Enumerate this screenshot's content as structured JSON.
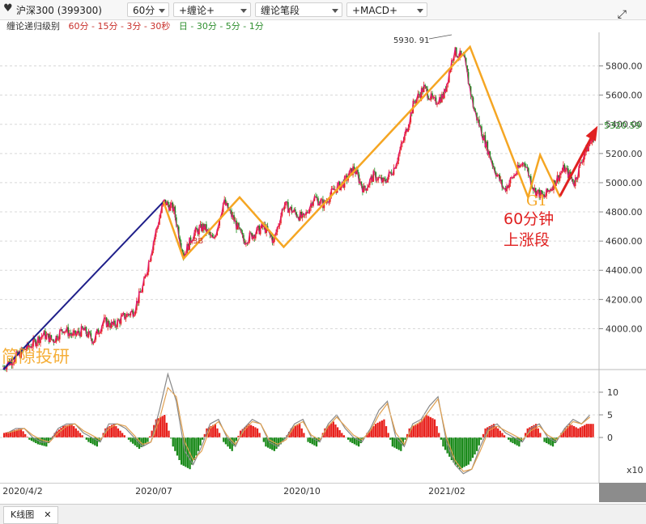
{
  "toolbar": {
    "heart_icon": "heart-icon",
    "symbol": "沪深300 (399300)",
    "period": "60分",
    "btn1": "+缠论+",
    "btn2": "缠论笔段",
    "btn3": "+MACD+",
    "expand_icon": "expand-icon"
  },
  "legend": {
    "label": "缠论递归级别",
    "red_part": "60分 - 15分 - 3分 - 30秒",
    "green_part": "日 - 30分 - 5分 - 1分"
  },
  "annotations": {
    "peak_label": "5930. 91",
    "last_price": "5320.59",
    "b3_label": "3B",
    "g1_label": "G1",
    "up_text_1": "60分钟",
    "up_text_2": "上涨段",
    "watermark": "简隙投研"
  },
  "colors": {
    "bull": "#e8211c",
    "bear": "#1a8a1a",
    "line_k": "#e0197d",
    "segment": "#f5a623",
    "trend": "#1f1f8a",
    "arrow": "#e02020",
    "dif": "#888888",
    "dea": "#e0a050"
  },
  "chart_data": {
    "type": "line",
    "price_axis": {
      "ticks": [
        4000,
        4200,
        4400,
        4600,
        4800,
        5000,
        5200,
        5400,
        5600,
        5800
      ],
      "range": [
        3720,
        6030
      ]
    },
    "macd_axis": {
      "ticks": [
        10,
        5,
        0
      ],
      "range": [
        -10,
        15
      ],
      "unit_label": "x10"
    },
    "x_labels": [
      "2020/4/2",
      "2020/07",
      "2020/10",
      "2021/02"
    ],
    "price_series": {
      "name": "",
      "x": [
        0,
        5,
        10,
        15,
        20,
        25,
        30,
        35,
        40,
        45,
        50,
        55,
        60,
        65,
        70,
        75,
        80,
        85,
        90,
        95,
        100,
        105,
        110,
        115,
        120,
        125,
        130,
        135,
        140,
        145,
        150,
        155,
        160,
        165,
        170,
        175,
        180,
        185,
        190,
        195,
        200,
        205,
        210,
        215,
        220,
        225,
        230,
        235,
        240,
        245,
        250,
        255,
        260,
        265,
        270,
        275,
        280,
        285,
        290,
        295
      ],
      "y": [
        3740,
        3790,
        3850,
        3900,
        3960,
        3920,
        4000,
        3950,
        3990,
        3920,
        4050,
        4020,
        4080,
        4120,
        4300,
        4600,
        4870,
        4820,
        4500,
        4650,
        4700,
        4600,
        4870,
        4750,
        4600,
        4650,
        4700,
        4600,
        4850,
        4800,
        4750,
        4900,
        4850,
        4950,
        5000,
        5100,
        4950,
        5050,
        5000,
        5100,
        5300,
        5550,
        5650,
        5550,
        5600,
        5900,
        5850,
        5500,
        5300,
        5100,
        4950,
        5050,
        5150,
        4950,
        4900,
        5000,
        5100,
        5000,
        5200,
        5320
      ]
    },
    "segments": {
      "name": "",
      "points": [
        {
          "x": 80,
          "y": 4870
        },
        {
          "x": 90,
          "y": 4480
        },
        {
          "x": 118,
          "y": 4900
        },
        {
          "x": 140,
          "y": 4560
        },
        {
          "x": 233,
          "y": 5930.91
        },
        {
          "x": 262,
          "y": 4900
        },
        {
          "x": 268,
          "y": 5190
        },
        {
          "x": 278,
          "y": 4900
        }
      ]
    },
    "trend_line": {
      "from": {
        "x": 0,
        "y": 3720
      },
      "to": {
        "x": 80,
        "y": 4870
      }
    },
    "arrow": {
      "from": {
        "x": 278,
        "y": 4910
      },
      "to": {
        "x": 300,
        "y": 5370
      }
    },
    "macd_hist": [
      1,
      1.5,
      2,
      -0.5,
      -1.5,
      -2,
      1,
      2.5,
      3,
      1,
      -1,
      -2,
      2,
      3,
      1,
      -1,
      -2.5,
      -1,
      4,
      5,
      -2,
      -6,
      -7,
      -3,
      2,
      3,
      -1,
      -3,
      1.5,
      3,
      2,
      -2,
      -3,
      -1,
      2,
      3,
      -1,
      -2,
      2,
      3.5,
      1,
      -1,
      -2,
      1,
      3,
      4,
      -2,
      -3,
      2,
      3,
      5,
      4,
      -2,
      -5,
      -7,
      -6,
      -3,
      2,
      3,
      1,
      -1,
      -2,
      2,
      3,
      -1,
      -2,
      1,
      3,
      2,
      3
    ],
    "macd_dif": [
      1,
      2,
      2,
      0,
      -1,
      -1,
      2,
      3,
      3,
      1,
      0,
      -1,
      3,
      3,
      2,
      0,
      -2,
      -1,
      6,
      14,
      8,
      -3,
      -6,
      -2,
      3,
      4,
      0,
      -2,
      2,
      4,
      3,
      -1,
      -2,
      0,
      3,
      4,
      0,
      -1,
      3,
      5,
      2,
      0,
      -1,
      2,
      6,
      8,
      0,
      -2,
      3,
      4,
      7,
      9,
      -1,
      -6,
      -8,
      -7,
      -2,
      2,
      3,
      1,
      0,
      -1,
      2,
      3,
      0,
      -1,
      2,
      4,
      3,
      5
    ],
    "macd_dea": [
      1,
      1.5,
      2,
      0.5,
      -0.5,
      -1,
      1,
      2.5,
      3,
      1.5,
      0.5,
      -0.5,
      2,
      3,
      2.5,
      0.5,
      -1.5,
      -1,
      4,
      11,
      9,
      -1,
      -5,
      -3,
      2,
      3.5,
      0.5,
      -1.5,
      1.5,
      3.5,
      3,
      -0.5,
      -1.5,
      -0.5,
      2.5,
      3.5,
      0.5,
      -0.5,
      2.5,
      4.5,
      2.5,
      0.5,
      -0.5,
      1.5,
      5,
      7.5,
      1,
      -1.5,
      2.5,
      3.5,
      6,
      8.5,
      0,
      -5,
      -7.5,
      -7,
      -3,
      1.5,
      2.5,
      1.5,
      0.5,
      -0.5,
      1.5,
      2.5,
      0.5,
      -0.5,
      1.5,
      3.5,
      3,
      4.5
    ]
  }
}
